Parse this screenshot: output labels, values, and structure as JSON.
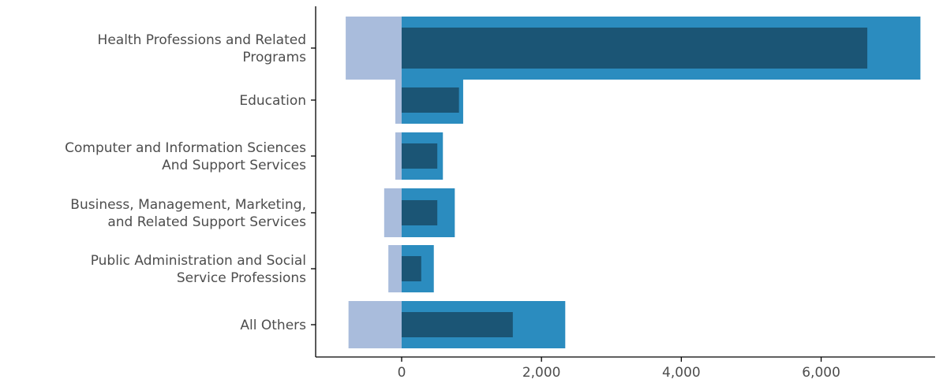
{
  "chart_data": {
    "type": "bar",
    "title": "",
    "xlabel": "",
    "ylabel": "",
    "categories": [
      [
        "Health Professions and Related",
        "Programs"
      ],
      [
        "Education"
      ],
      [
        "Computer and Information Sciences",
        "And Support Services"
      ],
      [
        "Business, Management, Marketing,",
        "and Related Support Services"
      ],
      [
        "Public Administration and Social",
        "Service Professions"
      ],
      [
        "All Others"
      ]
    ],
    "series": [
      {
        "color": "#a9bcdc",
        "values": [
          -800,
          -90,
          -90,
          -250,
          -190,
          -760
        ]
      },
      {
        "color": "#2b8cbf",
        "values": [
          7420,
          880,
          590,
          760,
          460,
          2340
        ]
      },
      {
        "color": "#1b5575",
        "values": [
          6660,
          820,
          510,
          510,
          280,
          1590
        ]
      }
    ],
    "xlim": [
      -1230,
      7630
    ],
    "x_ticks": [
      0,
      2000,
      4000,
      6000
    ],
    "x_tick_labels": [
      "0",
      "2,000",
      "4,000",
      "6,000"
    ],
    "grid": false,
    "legend": "none"
  }
}
